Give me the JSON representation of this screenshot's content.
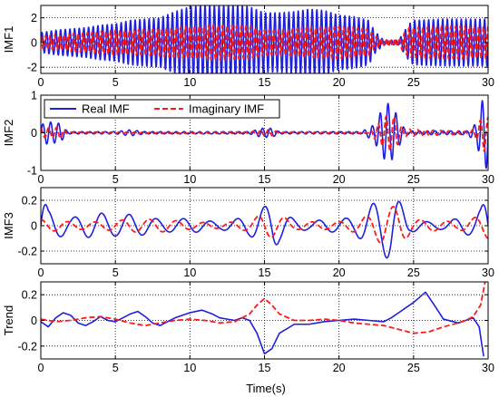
{
  "figure": {
    "legend": {
      "entries": [
        "Real IMF",
        "Imaginary IMF"
      ],
      "placement": "top-left of panel 2"
    },
    "colors": {
      "real": "#1f1fe0",
      "imag": "#ff1a1a",
      "grid": "#000000"
    }
  },
  "chart_data": [
    {
      "type": "line",
      "ylabel": "IMF1",
      "xlim": [
        0,
        30
      ],
      "ylim": [
        -2.5,
        3
      ],
      "xticks": [
        "0",
        "5",
        "10",
        "15",
        "20",
        "25",
        "30"
      ],
      "yticks": [
        "2",
        "0",
        "-2"
      ],
      "ytick_values": [
        2,
        0,
        -2
      ],
      "grid": true,
      "series": [
        {
          "name": "Real IMF",
          "style": "solid",
          "envelope": [
            [
              0,
              0.8
            ],
            [
              1,
              1.0
            ],
            [
              2,
              1.1
            ],
            [
              3,
              1.2
            ],
            [
              4,
              1.4
            ],
            [
              5,
              1.5
            ],
            [
              6,
              1.8
            ],
            [
              7,
              1.9
            ],
            [
              8,
              2.0
            ],
            [
              9,
              2.5
            ],
            [
              10,
              2.9
            ],
            [
              11,
              3.0
            ],
            [
              12,
              3.0
            ],
            [
              13,
              3.0
            ],
            [
              14,
              2.9
            ],
            [
              15,
              2.4
            ],
            [
              16,
              2.4
            ],
            [
              17,
              2.5
            ],
            [
              18,
              2.7
            ],
            [
              19,
              2.6
            ],
            [
              20,
              2.2
            ],
            [
              21,
              2.1
            ],
            [
              22,
              1.8
            ],
            [
              22.4,
              0.9
            ],
            [
              23,
              0.2
            ],
            [
              24,
              0.2
            ],
            [
              24.7,
              1.5
            ],
            [
              25,
              1.8
            ],
            [
              27,
              1.9
            ],
            [
              29,
              1.9
            ],
            [
              30,
              1.9
            ]
          ],
          "cycles_per_unit": 3.2,
          "phase": 0
        },
        {
          "name": "Imaginary IMF",
          "style": "dashed",
          "envelope": [
            [
              0,
              0.5
            ],
            [
              1,
              0.6
            ],
            [
              2,
              0.7
            ],
            [
              3,
              0.8
            ],
            [
              4,
              0.9
            ],
            [
              5,
              1.0
            ],
            [
              6,
              1.0
            ],
            [
              8,
              1.1
            ],
            [
              10,
              1.3
            ],
            [
              12,
              1.4
            ],
            [
              14,
              1.3
            ],
            [
              15,
              1.0
            ],
            [
              16,
              1.0
            ],
            [
              18,
              1.2
            ],
            [
              20,
              1.3
            ],
            [
              21,
              1.2
            ],
            [
              22,
              1.1
            ],
            [
              22.4,
              0.5
            ],
            [
              23,
              0.3
            ],
            [
              24,
              0.3
            ],
            [
              24.7,
              1.2
            ],
            [
              27,
              1.3
            ],
            [
              30,
              1.3
            ]
          ],
          "cycles_per_unit": 3.2,
          "phase": 1.57
        }
      ]
    },
    {
      "type": "line",
      "ylabel": "IMF2",
      "xlim": [
        0,
        30
      ],
      "ylim": [
        -1,
        1
      ],
      "xticks": [
        "0",
        "5",
        "10",
        "15",
        "20",
        "25",
        "30"
      ],
      "yticks": [
        "1",
        "0",
        "-1"
      ],
      "ytick_values": [
        1,
        0,
        -1
      ],
      "grid": true,
      "series": [
        {
          "name": "Real IMF",
          "style": "solid",
          "envelope": [
            [
              0,
              0.2
            ],
            [
              0.4,
              0.3
            ],
            [
              1.3,
              0.25
            ],
            [
              1.8,
              0.03
            ],
            [
              5,
              0.03
            ],
            [
              6,
              0.08
            ],
            [
              7,
              0.03
            ],
            [
              14,
              0.03
            ],
            [
              14.8,
              0.12
            ],
            [
              15.5,
              0.12
            ],
            [
              16,
              0.03
            ],
            [
              21.5,
              0.03
            ],
            [
              22.3,
              0.2
            ],
            [
              22.8,
              0.55
            ],
            [
              23.2,
              0.8
            ],
            [
              23.6,
              0.7
            ],
            [
              24.1,
              0.3
            ],
            [
              24.5,
              0.05
            ],
            [
              28.6,
              0.05
            ],
            [
              29.2,
              0.25
            ],
            [
              29.6,
              0.85
            ],
            [
              29.9,
              0.95
            ],
            [
              30,
              0.9
            ]
          ],
          "cycles_per_unit": 1.9,
          "phase": 0
        },
        {
          "name": "Imaginary IMF",
          "style": "dashed",
          "envelope": [
            [
              0,
              0.12
            ],
            [
              1.3,
              0.15
            ],
            [
              1.8,
              0.02
            ],
            [
              14,
              0.02
            ],
            [
              14.8,
              0.08
            ],
            [
              15.5,
              0.08
            ],
            [
              16,
              0.02
            ],
            [
              22,
              0.02
            ],
            [
              22.8,
              0.3
            ],
            [
              23.3,
              0.5
            ],
            [
              23.8,
              0.4
            ],
            [
              24.3,
              0.1
            ],
            [
              28.8,
              0.03
            ],
            [
              29.3,
              0.2
            ],
            [
              29.7,
              0.5
            ],
            [
              30,
              0.4
            ]
          ],
          "cycles_per_unit": 1.9,
          "phase": 1.57
        }
      ]
    },
    {
      "type": "line",
      "ylabel": "IMF3",
      "xlim": [
        0,
        30
      ],
      "ylim": [
        -0.3,
        0.3
      ],
      "xticks": [
        "0",
        "5",
        "10",
        "15",
        "20",
        "25",
        "30"
      ],
      "yticks": [
        "0.2",
        "0",
        "-0.2"
      ],
      "ytick_values": [
        0.2,
        0,
        -0.2
      ],
      "grid": true,
      "series": [
        {
          "name": "Real IMF",
          "style": "solid",
          "envelope": [
            [
              0,
              0.3
            ],
            [
              0.5,
              0.12
            ],
            [
              2,
              0.06
            ],
            [
              3,
              0.09
            ],
            [
              4,
              0.1
            ],
            [
              5,
              0.08
            ],
            [
              6,
              0.09
            ],
            [
              7,
              0.07
            ],
            [
              8,
              0.05
            ],
            [
              9,
              0.05
            ],
            [
              10,
              0.06
            ],
            [
              11,
              0.04
            ],
            [
              12,
              0.03
            ],
            [
              13,
              0.05
            ],
            [
              14,
              0.08
            ],
            [
              15,
              0.15
            ],
            [
              15.6,
              0.2
            ],
            [
              16,
              0.12
            ],
            [
              17,
              0.05
            ],
            [
              18,
              0.03
            ],
            [
              19,
              0.05
            ],
            [
              20,
              0.05
            ],
            [
              21,
              0.07
            ],
            [
              22,
              0.15
            ],
            [
              22.8,
              0.22
            ],
            [
              23.5,
              0.28
            ],
            [
              24,
              0.2
            ],
            [
              24.8,
              0.05
            ],
            [
              26,
              0.03
            ],
            [
              27,
              0.03
            ],
            [
              28,
              0.06
            ],
            [
              29,
              0.08
            ],
            [
              29.5,
              0.13
            ],
            [
              30,
              0.28
            ]
          ],
          "cycles_per_unit": 0.55,
          "phase": 0
        },
        {
          "name": "Imaginary IMF",
          "style": "dashed",
          "envelope": [
            [
              0,
              0.05
            ],
            [
              2,
              0.03
            ],
            [
              4,
              0.03
            ],
            [
              6,
              0.05
            ],
            [
              8,
              0.05
            ],
            [
              10,
              0.03
            ],
            [
              12,
              0.02
            ],
            [
              14,
              0.04
            ],
            [
              15,
              0.1
            ],
            [
              16,
              0.08
            ],
            [
              17,
              0.03
            ],
            [
              20,
              0.03
            ],
            [
              21,
              0.05
            ],
            [
              22,
              0.08
            ],
            [
              23,
              0.15
            ],
            [
              24,
              0.15
            ],
            [
              25,
              0.05
            ],
            [
              28,
              0.03
            ],
            [
              29,
              0.06
            ],
            [
              30,
              0.1
            ]
          ],
          "cycles_per_unit": 0.55,
          "phase": 1.57
        }
      ]
    },
    {
      "type": "line",
      "ylabel": "Trend",
      "xlabel": "Time(s)",
      "xlim": [
        0,
        30
      ],
      "ylim": [
        -0.3,
        0.3
      ],
      "xticks": [
        "0",
        "5",
        "10",
        "15",
        "20",
        "25",
        "30"
      ],
      "yticks": [
        "0.2",
        "0",
        "-0.2"
      ],
      "ytick_values": [
        0.2,
        0,
        -0.2
      ],
      "grid": true,
      "series": [
        {
          "name": "Real IMF",
          "style": "solid",
          "points": [
            [
              0,
              -0.01
            ],
            [
              0.5,
              -0.05
            ],
            [
              1,
              0.02
            ],
            [
              1.5,
              0.06
            ],
            [
              2,
              0.04
            ],
            [
              2.5,
              -0.02
            ],
            [
              3,
              -0.04
            ],
            [
              3.5,
              -0.01
            ],
            [
              4,
              0.03
            ],
            [
              4.5,
              0.0
            ],
            [
              5,
              -0.01
            ],
            [
              5.5,
              0.02
            ],
            [
              6,
              0.05
            ],
            [
              6.5,
              0.07
            ],
            [
              7,
              0.03
            ],
            [
              7.5,
              -0.02
            ],
            [
              8,
              -0.04
            ],
            [
              8.5,
              -0.01
            ],
            [
              9,
              0.02
            ],
            [
              10,
              0.06
            ],
            [
              10.8,
              0.08
            ],
            [
              11.5,
              0.05
            ],
            [
              12,
              0.02
            ],
            [
              13,
              0.0
            ],
            [
              13.5,
              0.02
            ],
            [
              14,
              0.0
            ],
            [
              14.5,
              -0.1
            ],
            [
              15,
              -0.26
            ],
            [
              15.5,
              -0.22
            ],
            [
              16,
              -0.1
            ],
            [
              17,
              -0.03
            ],
            [
              18,
              -0.03
            ],
            [
              19,
              -0.01
            ],
            [
              20,
              0.0
            ],
            [
              21,
              0.01
            ],
            [
              22,
              0.0
            ],
            [
              23,
              -0.01
            ],
            [
              23.5,
              0.02
            ],
            [
              24,
              0.06
            ],
            [
              25,
              0.14
            ],
            [
              25.8,
              0.22
            ],
            [
              26.5,
              0.1
            ],
            [
              27,
              0.01
            ],
            [
              28,
              -0.02
            ],
            [
              28.5,
              0.0
            ],
            [
              29,
              0.02
            ],
            [
              29.4,
              -0.05
            ],
            [
              29.7,
              -0.28
            ]
          ]
        },
        {
          "name": "Imaginary IMF",
          "style": "dashed",
          "points": [
            [
              0,
              0.01
            ],
            [
              1,
              -0.01
            ],
            [
              2,
              0.0
            ],
            [
              3,
              0.02
            ],
            [
              4,
              0.03
            ],
            [
              5,
              0.01
            ],
            [
              6,
              -0.02
            ],
            [
              7,
              -0.04
            ],
            [
              8,
              -0.02
            ],
            [
              9,
              0.0
            ],
            [
              10,
              0.01
            ],
            [
              11,
              0.0
            ],
            [
              12,
              -0.02
            ],
            [
              13,
              -0.01
            ],
            [
              14,
              0.05
            ],
            [
              14.5,
              0.12
            ],
            [
              15,
              0.17
            ],
            [
              15.5,
              0.12
            ],
            [
              16,
              0.05
            ],
            [
              17,
              0.0
            ],
            [
              18,
              0.0
            ],
            [
              19,
              0.01
            ],
            [
              20,
              0.0
            ],
            [
              21,
              -0.02
            ],
            [
              22,
              -0.03
            ],
            [
              23,
              -0.04
            ],
            [
              24,
              -0.07
            ],
            [
              25,
              -0.1
            ],
            [
              26,
              -0.09
            ],
            [
              27,
              -0.05
            ],
            [
              28,
              -0.02
            ],
            [
              28.5,
              0.0
            ],
            [
              29,
              0.03
            ],
            [
              29.5,
              0.12
            ],
            [
              29.8,
              0.3
            ]
          ]
        }
      ]
    }
  ]
}
